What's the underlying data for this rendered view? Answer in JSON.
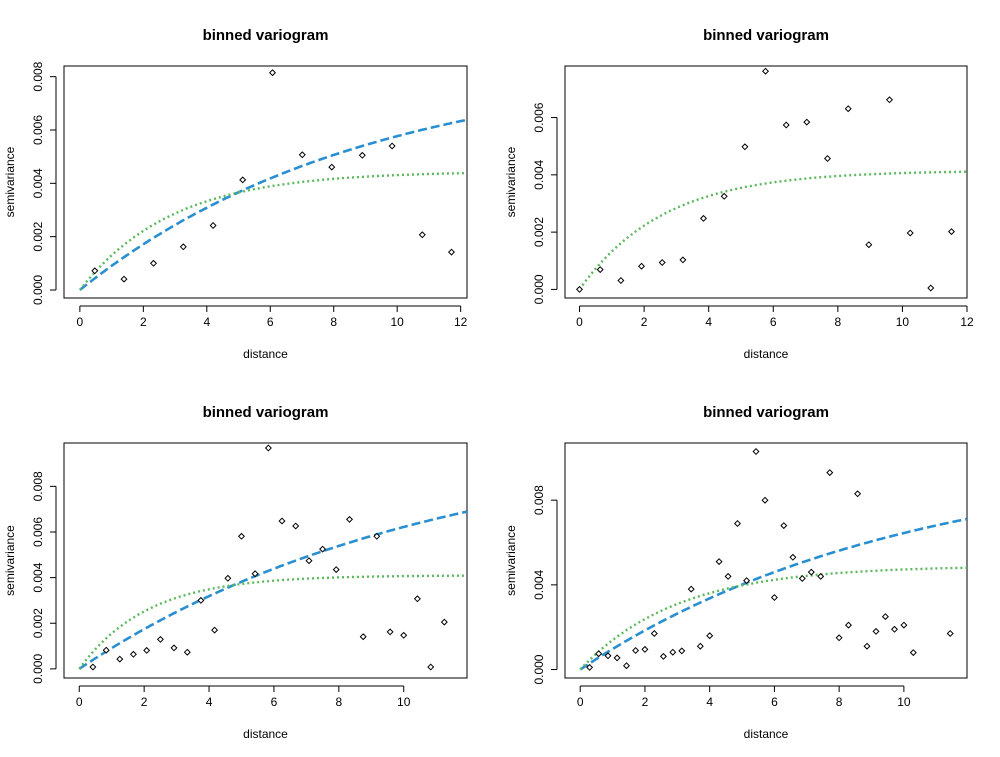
{
  "chart_data": [
    {
      "type": "scatter",
      "title": "binned variogram",
      "xlabel": "distance",
      "ylabel": "semivariance",
      "xlim": [
        -0.5,
        12.2
      ],
      "ylim": [
        -0.0003,
        0.0084
      ],
      "xticks": [
        "0",
        "2",
        "4",
        "6",
        "8",
        "10",
        "12"
      ],
      "yticks": [
        "0.000",
        "0.002",
        "0.004",
        "0.006",
        "0.008"
      ],
      "points": {
        "x": [
          0.47,
          1.39,
          2.32,
          3.26,
          4.2,
          5.13,
          6.07,
          7.01,
          7.94,
          8.9,
          9.84,
          10.79,
          11.71
        ],
        "y": [
          0.00072,
          0.00041,
          0.001,
          0.00162,
          0.00242,
          0.00413,
          0.00815,
          0.00507,
          0.00461,
          0.00505,
          0.0054,
          0.00207,
          0.00142
        ]
      },
      "curves": [
        {
          "style": "dashed",
          "color": "#2a8fd0",
          "model": "exponential",
          "nugget": 0,
          "sill": 0.0086,
          "range": 9.0
        },
        {
          "style": "dotted",
          "color": "#5cb85c",
          "model": "exponential",
          "nugget": 0,
          "sill": 0.00445,
          "range": 2.9
        }
      ]
    },
    {
      "type": "scatter",
      "title": "binned variogram",
      "xlabel": "distance",
      "ylabel": "semivariance",
      "xlim": [
        -0.45,
        12.0
      ],
      "ylim": [
        -0.0003,
        0.0078
      ],
      "xticks": [
        "0",
        "2",
        "4",
        "6",
        "8",
        "10",
        "12"
      ],
      "yticks": [
        "0.000",
        "0.002",
        "0.004",
        "0.006"
      ],
      "points": {
        "x": [
          0.0,
          0.64,
          1.28,
          1.92,
          2.56,
          3.2,
          3.84,
          4.48,
          5.12,
          5.76,
          6.4,
          7.04,
          7.68,
          8.32,
          8.96,
          9.6,
          10.24,
          10.88,
          11.52
        ],
        "y": [
          0.0,
          0.00069,
          0.00031,
          0.00081,
          0.00094,
          0.00103,
          0.00248,
          0.00325,
          0.00498,
          0.00762,
          0.00574,
          0.00584,
          0.00457,
          0.00631,
          0.00156,
          0.00662,
          0.00197,
          5e-05,
          0.00202
        ]
      },
      "curves": [
        {
          "style": "dotted",
          "color": "#5cb85c",
          "model": "exponential",
          "nugget": 0,
          "sill": 0.00415,
          "range": 2.6
        }
      ]
    },
    {
      "type": "scatter",
      "title": "binned variogram",
      "xlabel": "distance",
      "ylabel": "semivariance",
      "xlim": [
        -0.47,
        11.95
      ],
      "ylim": [
        -0.0004,
        0.0099
      ],
      "xticks": [
        "0",
        "2",
        "4",
        "6",
        "8",
        "10"
      ],
      "yticks": [
        "0.000",
        "0.002",
        "0.004",
        "0.006",
        "0.008"
      ],
      "points": {
        "x": [
          0.42,
          0.83,
          1.25,
          1.67,
          2.08,
          2.5,
          2.92,
          3.33,
          3.75,
          4.17,
          4.58,
          5.0,
          5.42,
          5.83,
          6.25,
          6.67,
          7.08,
          7.5,
          7.92,
          8.33,
          8.75,
          9.17,
          9.58,
          10.0,
          10.42,
          10.83,
          11.25
        ],
        "y": [
          8e-05,
          0.00082,
          0.00043,
          0.00064,
          0.00081,
          0.00129,
          0.00092,
          0.00073,
          0.003,
          0.0017,
          0.00397,
          0.00581,
          0.00417,
          0.00968,
          0.00648,
          0.00626,
          0.00474,
          0.00525,
          0.00435,
          0.00655,
          0.00141,
          0.00581,
          0.00162,
          0.00147,
          0.00307,
          8e-05,
          0.00205
        ]
      },
      "curves": [
        {
          "style": "dashed",
          "color": "#2a8fd0",
          "model": "exponential",
          "nugget": 0,
          "sill": 0.0103,
          "range": 10.8
        },
        {
          "style": "dotted",
          "color": "#5cb85c",
          "model": "exponential",
          "nugget": 0,
          "sill": 0.0041,
          "range": 2.1
        }
      ]
    },
    {
      "type": "scatter",
      "title": "binned variogram",
      "xlabel": "distance",
      "ylabel": "semivariance",
      "xlim": [
        -0.47,
        11.95
      ],
      "ylim": [
        -0.0004,
        0.0107
      ],
      "xticks": [
        "0",
        "2",
        "4",
        "6",
        "8",
        "10"
      ],
      "yticks": [
        "0.000",
        "0.004",
        "0.008"
      ],
      "points": {
        "x": [
          0.29,
          0.57,
          0.86,
          1.14,
          1.43,
          1.71,
          2.0,
          2.29,
          2.57,
          2.86,
          3.14,
          3.43,
          3.71,
          4.0,
          4.29,
          4.57,
          4.86,
          5.14,
          5.43,
          5.71,
          6.0,
          6.29,
          6.57,
          6.86,
          7.14,
          7.43,
          7.71,
          8.0,
          8.29,
          8.57,
          8.86,
          9.14,
          9.43,
          9.71,
          10.0,
          10.29,
          11.43
        ],
        "y": [
          0.0001,
          0.00075,
          0.00065,
          0.00055,
          0.00018,
          0.0009,
          0.00095,
          0.0017,
          0.00062,
          0.00082,
          0.00088,
          0.0038,
          0.0011,
          0.0016,
          0.0051,
          0.0044,
          0.0069,
          0.0042,
          0.0103,
          0.008,
          0.0034,
          0.0068,
          0.0053,
          0.0043,
          0.0046,
          0.0044,
          0.0093,
          0.0015,
          0.0021,
          0.0083,
          0.0011,
          0.0018,
          0.0025,
          0.0019,
          0.0021,
          0.0008,
          0.0017
        ]
      },
      "curves": [
        {
          "style": "dashed",
          "color": "#2a8fd0",
          "model": "exponential",
          "nugget": 0,
          "sill": 0.0102,
          "range": 10.0
        },
        {
          "style": "dotted",
          "color": "#5cb85c",
          "model": "exponential",
          "nugget": 0,
          "sill": 0.0049,
          "range": 3.0
        }
      ]
    }
  ]
}
